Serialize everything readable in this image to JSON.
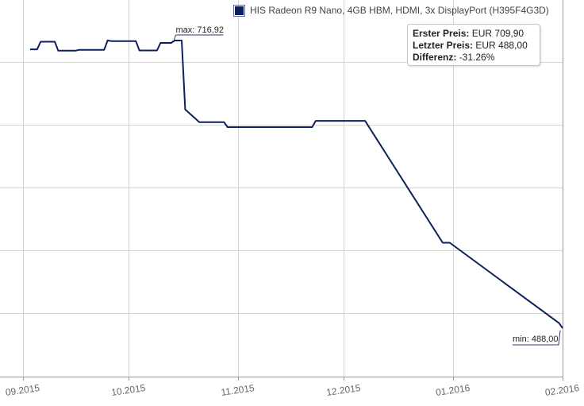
{
  "legend": {
    "label": "HIS Radeon R9 Nano, 4GB HBM, HDMI, 3x DisplayPort (H395F4G3D)"
  },
  "infobox": {
    "first_label": "Erster Preis:",
    "first_value": "EUR 709,90",
    "last_label": "Letzter Preis:",
    "last_value": "EUR 488,00",
    "diff_label": "Differenz:",
    "diff_value": "-31.26%"
  },
  "markers": {
    "max_label": "max: 716,92",
    "min_label": "min: 488,00"
  },
  "colors": {
    "line": "#0d1f5c",
    "legend_swatch": "#0d1f5c",
    "grid": "#d4d4d4"
  },
  "chart_data": {
    "type": "line",
    "x_ticks": [
      "09.2015",
      "10.2015",
      "11.2015",
      "12.2015",
      "01.2016",
      "02.2016"
    ],
    "x_tick_dates": [
      "2015-09-01",
      "2015-10-01",
      "2015-11-01",
      "2015-12-01",
      "2016-01-01",
      "2016-02-01"
    ],
    "xlim": [
      "2015-09-01",
      "2016-02-01"
    ],
    "ylim": [
      480,
      730
    ],
    "y_grid": [
      500,
      550,
      600,
      650,
      700
    ],
    "grid": true,
    "series": [
      {
        "name": "HIS Radeon R9 Nano, 4GB HBM, HDMI, 3x DisplayPort (H395F4G3D)",
        "x": [
          "2015-09-03",
          "2015-09-05",
          "2015-09-06",
          "2015-09-10",
          "2015-09-11",
          "2015-09-16",
          "2015-09-17",
          "2015-09-24",
          "2015-09-25",
          "2015-09-26",
          "2015-10-03",
          "2015-10-04",
          "2015-10-07",
          "2015-10-08",
          "2015-10-09",
          "2015-10-10",
          "2015-10-13",
          "2015-10-14",
          "2015-10-15",
          "2015-10-16",
          "2015-10-17",
          "2015-10-21",
          "2015-10-28",
          "2015-10-29",
          "2015-11-05",
          "2015-11-06",
          "2015-11-21",
          "2015-11-22",
          "2015-11-23",
          "2015-11-24",
          "2015-12-06",
          "2015-12-07",
          "2015-12-29",
          "2015-12-30",
          "2015-12-31",
          "2016-01-31",
          "2016-02-01"
        ],
        "y": [
          709.9,
          709.9,
          716,
          716,
          708.9,
          708.9,
          709.5,
          709.5,
          717,
          716.5,
          716.5,
          709,
          709,
          709,
          709,
          715,
          715,
          716.9,
          716.9,
          716.9,
          662,
          652,
          652,
          648,
          648,
          648,
          648,
          648,
          653,
          653,
          653,
          653,
          556,
          556,
          556,
          492,
          488
        ],
        "color": "#0d1f5c"
      }
    ],
    "annotations": [
      {
        "text": "max: 716,92",
        "x": "2015-10-17",
        "y": 716.92
      },
      {
        "text": "min: 488,00",
        "x": "2016-02-01",
        "y": 488.0
      }
    ]
  }
}
